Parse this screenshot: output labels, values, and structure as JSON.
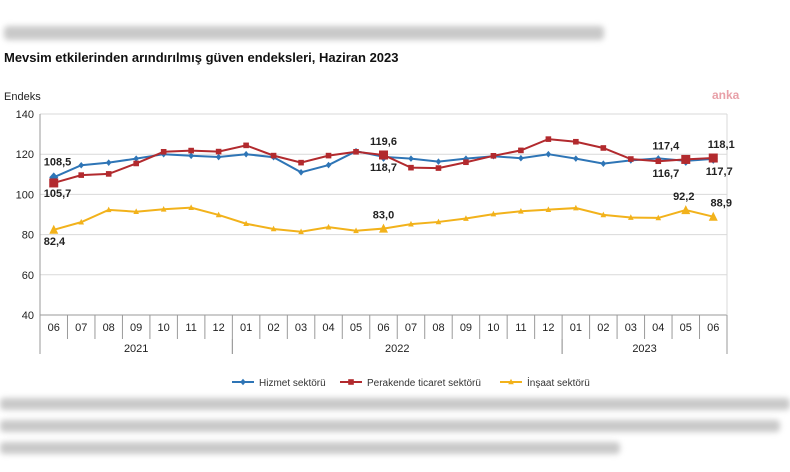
{
  "watermark": "anka",
  "chart_data": {
    "type": "line",
    "title": "Mevsim etkilerinden arındırılmış güven endeksleri, Haziran 2023",
    "ylabel": "Endeks",
    "ylim": [
      40,
      140
    ],
    "yticks": [
      40,
      60,
      80,
      100,
      120,
      140
    ],
    "grid": true,
    "legend_position": "bottom",
    "categories": [
      "06",
      "07",
      "08",
      "09",
      "10",
      "11",
      "12",
      "01",
      "02",
      "03",
      "04",
      "05",
      "06",
      "07",
      "08",
      "09",
      "10",
      "11",
      "12",
      "01",
      "02",
      "03",
      "04",
      "05",
      "06"
    ],
    "years": [
      {
        "label": "2021",
        "start": 0,
        "end": 6
      },
      {
        "label": "2022",
        "start": 7,
        "end": 18
      },
      {
        "label": "2023",
        "start": 19,
        "end": 24
      }
    ],
    "series": [
      {
        "name": "Hizmet sektörü",
        "color": "#2e75b6",
        "values": [
          108.5,
          114.5,
          115.8,
          117.8,
          120.0,
          119.2,
          118.6,
          120.0,
          118.5,
          111.0,
          114.6,
          121.5,
          118.7,
          117.8,
          116.3,
          117.8,
          119.0,
          118.0,
          120.0,
          117.8,
          115.3,
          116.9,
          117.9,
          116.7,
          117.7
        ],
        "labels": [
          {
            "i": 0,
            "text": "108,5"
          },
          {
            "i": 12,
            "text": "118,7"
          },
          {
            "i": 23,
            "text": "116,7"
          },
          {
            "i": 24,
            "text": "117,7"
          }
        ]
      },
      {
        "name": "Perakende ticaret sektörü",
        "color": "#b22a2e",
        "values": [
          105.7,
          109.6,
          110.2,
          115.4,
          121.2,
          121.8,
          121.3,
          124.4,
          119.3,
          115.8,
          119.3,
          121.2,
          119.6,
          113.3,
          113.1,
          116.0,
          119.2,
          121.9,
          127.5,
          126.2,
          123.1,
          117.6,
          116.5,
          117.4,
          118.1
        ],
        "labels": [
          {
            "i": 0,
            "text": "105,7"
          },
          {
            "i": 12,
            "text": "119,6"
          },
          {
            "i": 23,
            "text": "117,4"
          },
          {
            "i": 24,
            "text": "118,1"
          }
        ]
      },
      {
        "name": "İnşaat sektörü",
        "color": "#f2b21b",
        "values": [
          82.4,
          86.2,
          92.3,
          91.4,
          92.6,
          93.4,
          89.8,
          85.4,
          82.8,
          81.4,
          83.7,
          81.9,
          83.0,
          85.2,
          86.3,
          88.0,
          90.2,
          91.6,
          92.4,
          93.2,
          89.8,
          88.5,
          88.3,
          92.2,
          88.9
        ],
        "labels": [
          {
            "i": 0,
            "text": "82,4"
          },
          {
            "i": 12,
            "text": "83,0"
          },
          {
            "i": 23,
            "text": "92,2"
          },
          {
            "i": 24,
            "text": "88,9"
          }
        ]
      }
    ]
  }
}
